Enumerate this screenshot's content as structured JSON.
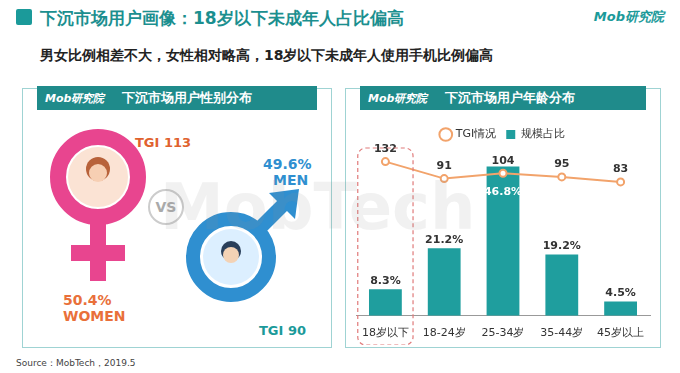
{
  "header": {
    "title": "下沉市场用户画像：18岁以下未成年人占比偏高",
    "subtitle": "男女比例相差不大，女性相对略高，18岁以下未成年人使用手机比例偏高",
    "brand": "Mob研究院"
  },
  "watermark": "MobTech",
  "gender_panel": {
    "title": "下沉市场用户性别分布",
    "vs": "VS",
    "female": {
      "label": "WOMEN",
      "share": "50.4%",
      "tgi": "TGI 113"
    },
    "male": {
      "label": "MEN",
      "share": "49.6%",
      "tgi": "TGI 90"
    }
  },
  "chart_data": {
    "type": "bar",
    "title": "下沉市场用户年龄分布",
    "categories": [
      "18岁以下",
      "18-24岁",
      "25-34岁",
      "35-44岁",
      "45岁以上"
    ],
    "series": [
      {
        "name": "规模占比",
        "type": "bar",
        "color": "#1f9e9e",
        "values": [
          8.3,
          21.2,
          46.8,
          19.2,
          4.5
        ],
        "value_labels": [
          "8.3%",
          "21.2%",
          "46.8%",
          "19.2%",
          "4.5%"
        ]
      },
      {
        "name": "TGI情况",
        "type": "line",
        "axis": "y2",
        "color": "#f2a36b",
        "marker": "circle",
        "line_style": "solid",
        "values": [
          132,
          91,
          104,
          95,
          83
        ]
      }
    ],
    "ylim": [
      0,
      52
    ],
    "y2lim": [
      -240,
      160
    ],
    "data_labels": true,
    "legend": "top",
    "grid": false,
    "tick_labels": "x"
  },
  "source": "Source：MobTech，2019.5"
}
